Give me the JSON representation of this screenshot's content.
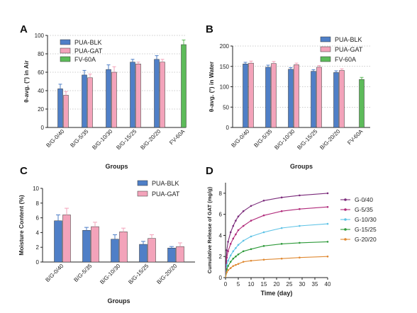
{
  "figure": {
    "panel_letters": [
      "A",
      "B",
      "C",
      "D"
    ]
  },
  "chart_data": [
    {
      "panel": "A",
      "type": "bar",
      "ylabel": "θ-avg. (°) in Air",
      "xlabel": "Groups",
      "ylim": [
        0,
        100
      ],
      "yticks": [
        0,
        20,
        40,
        60,
        80,
        100
      ],
      "grid": "dotted horizontal",
      "legend": "top-left",
      "categories": [
        "B/G-0/40",
        "B/G-5/35",
        "B/G-10/30",
        "B/G-15/25",
        "B/G-20/20",
        "FV-60A"
      ],
      "series": [
        {
          "name": "PUA-BLK",
          "color": "#4f7fc7",
          "values": [
            42,
            57,
            63,
            71,
            74,
            null
          ],
          "errors": [
            5,
            5,
            5,
            3,
            4,
            null
          ]
        },
        {
          "name": "PUA-GAT",
          "color": "#f3a3ba",
          "values": [
            35,
            54,
            60,
            69,
            71,
            null
          ],
          "errors": [
            4,
            4,
            6,
            2,
            3,
            null
          ]
        },
        {
          "name": "FV-60A",
          "color": "#5dbb5a",
          "values": [
            null,
            null,
            null,
            null,
            null,
            90
          ],
          "errors": [
            null,
            null,
            null,
            null,
            null,
            5
          ]
        }
      ]
    },
    {
      "panel": "B",
      "type": "bar",
      "ylabel": "θ-avg. (°) in Water",
      "xlabel": "Groups",
      "ylim": [
        0,
        200
      ],
      "yticks": [
        0,
        50,
        100,
        150,
        200
      ],
      "grid": "dotted horizontal",
      "legend": "top-right",
      "categories": [
        "B/G-0/40",
        "B/G-5/35",
        "B/G-10/30",
        "B/G-15/25",
        "B/G-20/20",
        "FV-60A"
      ],
      "series": [
        {
          "name": "PUA-BLK",
          "color": "#4f7fc7",
          "values": [
            156,
            148,
            143,
            138,
            135,
            null
          ],
          "errors": [
            4,
            5,
            4,
            4,
            4,
            null
          ]
        },
        {
          "name": "PUA-GAT",
          "color": "#f3a3ba",
          "values": [
            158,
            157,
            154,
            148,
            140,
            null
          ],
          "errors": [
            5,
            5,
            4,
            4,
            4,
            null
          ]
        },
        {
          "name": "FV-60A",
          "color": "#5dbb5a",
          "values": [
            null,
            null,
            null,
            null,
            null,
            118
          ],
          "errors": [
            null,
            null,
            null,
            null,
            null,
            5
          ]
        }
      ]
    },
    {
      "panel": "C",
      "type": "bar",
      "ylabel": "Moisture Content (%)",
      "xlabel": "Groups",
      "ylim": [
        0,
        10
      ],
      "yticks": [
        0,
        2,
        4,
        6,
        8,
        10
      ],
      "grid": "none",
      "legend": "top-right",
      "categories": [
        "B/G-0/40",
        "B/G-5/35",
        "B/G-10/30",
        "B/G-15/25",
        "B/G-20/20"
      ],
      "series": [
        {
          "name": "PUA-BLK",
          "color": "#4f7fc7",
          "values": [
            5.6,
            4.3,
            3.1,
            2.4,
            1.9
          ],
          "errors": [
            0.8,
            0.4,
            0.6,
            0.4,
            0.2
          ]
        },
        {
          "name": "PUA-GAT",
          "color": "#f3a3ba",
          "values": [
            6.4,
            4.8,
            4.1,
            3.2,
            2.1
          ],
          "errors": [
            0.9,
            0.6,
            0.5,
            0.5,
            0.5
          ]
        }
      ]
    },
    {
      "panel": "D",
      "type": "line",
      "ylabel": "Cumulative Release of GAT (mg/g)",
      "xlabel": "Time (day)",
      "xlim": [
        0,
        40
      ],
      "xticks": [
        0,
        5,
        10,
        15,
        20,
        25,
        30,
        35,
        40
      ],
      "ylim": [
        0,
        9
      ],
      "yticks": [
        0,
        2,
        4,
        6,
        8
      ],
      "legend": "right",
      "x": [
        0,
        0.5,
        1,
        2,
        3,
        4,
        5,
        7,
        10,
        15,
        22,
        29,
        40
      ],
      "series": [
        {
          "name": "G-0/40",
          "color": "#7a2a7a",
          "values": [
            0,
            2.6,
            3.4,
            4.3,
            4.9,
            5.4,
            5.8,
            6.3,
            6.8,
            7.3,
            7.6,
            7.8,
            8.0
          ]
        },
        {
          "name": "G-5/35",
          "color": "#b02a7a",
          "values": [
            0,
            1.9,
            2.5,
            3.2,
            3.7,
            4.1,
            4.5,
            4.9,
            5.4,
            5.9,
            6.3,
            6.5,
            6.7
          ]
        },
        {
          "name": "G-10/30",
          "color": "#5fc3e6",
          "values": [
            0,
            1.2,
            1.6,
            2.1,
            2.5,
            2.8,
            3.1,
            3.5,
            3.9,
            4.3,
            4.7,
            4.9,
            5.1
          ]
        },
        {
          "name": "G-15/25",
          "color": "#2e9a3a",
          "values": [
            0,
            0.8,
            1.1,
            1.5,
            1.8,
            2.0,
            2.2,
            2.5,
            2.7,
            3.0,
            3.2,
            3.3,
            3.4
          ]
        },
        {
          "name": "G-20/20",
          "color": "#e08a33",
          "values": [
            0,
            0.5,
            0.7,
            0.9,
            1.1,
            1.2,
            1.3,
            1.5,
            1.6,
            1.7,
            1.8,
            1.9,
            2.0
          ]
        }
      ]
    }
  ]
}
